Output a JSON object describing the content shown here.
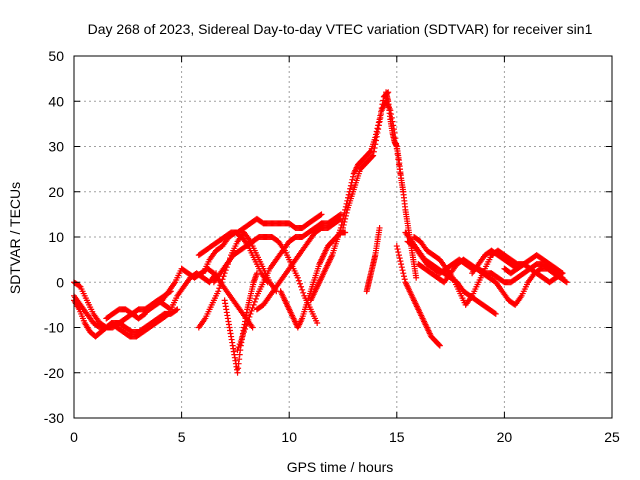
{
  "chart_data": {
    "type": "scatter",
    "title": "Day 268 of 2023, Sidereal Day-to-day VTEC variation (SDTVAR) for receiver sin1",
    "xlabel": "GPS time / hours",
    "ylabel": "SDTVAR / TECUs",
    "xlim": [
      0,
      25
    ],
    "ylim": [
      -30,
      50
    ],
    "xticks": [
      "0",
      "5",
      "10",
      "15",
      "20",
      "25"
    ],
    "yticks": [
      "-30",
      "-20",
      "-10",
      "0",
      "10",
      "20",
      "30",
      "40",
      "50"
    ],
    "grid": true,
    "marker": "+",
    "color": "#ff0000",
    "series": [
      {
        "name": "track-1",
        "x": [
          0.0,
          0.3,
          0.6,
          0.9,
          1.2,
          1.5,
          1.8,
          2.1,
          2.4,
          2.7,
          3.0,
          3.3,
          3.6,
          3.9,
          4.2,
          4.5,
          4.8
        ],
        "y": [
          -3,
          -5,
          -7,
          -9,
          -10,
          -10,
          -9,
          -9,
          -10,
          -11,
          -11,
          -10,
          -9,
          -8,
          -7,
          -7,
          -6
        ]
      },
      {
        "name": "track-2",
        "x": [
          0.0,
          0.25,
          0.5,
          0.75,
          1.0,
          1.25,
          1.5,
          1.75,
          2.0,
          2.3,
          2.6,
          2.9,
          3.2,
          3.5,
          3.8,
          4.1,
          4.4
        ],
        "y": [
          -4,
          -6,
          -9,
          -11,
          -12,
          -11,
          -10,
          -9,
          -10,
          -11,
          -12,
          -12,
          -11,
          -10,
          -9,
          -8,
          -7
        ]
      },
      {
        "name": "track-3",
        "x": [
          0.0,
          0.3,
          0.6,
          0.9,
          1.2,
          1.5,
          1.8,
          2.1,
          2.4,
          2.7,
          3.0,
          3.3,
          3.6,
          3.9,
          4.2,
          4.5
        ],
        "y": [
          0,
          -1,
          -4,
          -7,
          -9,
          -10,
          -10,
          -9,
          -8,
          -7,
          -6,
          -6,
          -5,
          -4,
          -3,
          -2
        ]
      },
      {
        "name": "track-4",
        "x": [
          1.5,
          1.8,
          2.1,
          2.4,
          2.7,
          3.0,
          3.3,
          3.6,
          3.9,
          4.2,
          4.5,
          4.8,
          5.1,
          5.4,
          5.7,
          6.0,
          6.3,
          6.6
        ],
        "y": [
          -8,
          -7,
          -6,
          -6,
          -7,
          -8,
          -7,
          -5,
          -4,
          -5,
          -6,
          -3,
          -1,
          1,
          2,
          1,
          0,
          2
        ]
      },
      {
        "name": "track-5",
        "x": [
          3.5,
          3.8,
          4.1,
          4.4,
          4.7,
          5.0,
          5.3,
          5.6,
          5.9,
          6.2,
          6.5,
          6.8,
          7.1,
          7.4,
          7.7,
          8.0,
          8.3
        ],
        "y": [
          -6,
          -5,
          -4,
          -2,
          0,
          3,
          2,
          1,
          2,
          3,
          2,
          0,
          -2,
          -4,
          -6,
          -8,
          -10
        ]
      },
      {
        "name": "track-6",
        "x": [
          5.8,
          6.1,
          6.4,
          6.7,
          7.0,
          7.3,
          7.6,
          7.9,
          8.2,
          8.5,
          8.8,
          9.1,
          9.4,
          9.7,
          10.0,
          10.3,
          10.6,
          10.9,
          11.2,
          11.5
        ],
        "y": [
          6,
          7,
          8,
          9,
          10,
          11,
          11,
          12,
          13,
          14,
          13,
          13,
          13,
          13,
          13,
          12,
          12,
          13,
          14,
          15
        ]
      },
      {
        "name": "track-7",
        "x": [
          5.8,
          6.1,
          6.4,
          6.7,
          7.0,
          7.3,
          7.6,
          7.9,
          8.2,
          8.5,
          8.8,
          9.1,
          9.4
        ],
        "y": [
          -10,
          -8,
          -5,
          -2,
          2,
          6,
          9,
          11,
          9,
          6,
          3,
          0,
          -2
        ]
      },
      {
        "name": "track-8",
        "x": [
          6.0,
          6.3,
          6.6,
          6.9,
          7.2,
          7.5,
          7.8,
          8.1,
          8.4,
          8.7,
          9.0
        ],
        "y": [
          2,
          5,
          7,
          8,
          10,
          11,
          10,
          8,
          5,
          2,
          0
        ]
      },
      {
        "name": "track-9",
        "x": [
          6.5,
          6.8,
          7.1,
          7.4,
          7.7,
          8.0,
          8.3,
          8.6,
          8.9,
          9.2,
          9.5,
          9.8,
          10.1,
          10.4,
          10.7,
          11.0,
          11.3
        ],
        "y": [
          0,
          2,
          4,
          6,
          7,
          8,
          9,
          10,
          10,
          10,
          9,
          7,
          4,
          1,
          -3,
          -6,
          -9
        ]
      },
      {
        "name": "track-10",
        "x": [
          7.0,
          7.15,
          7.3,
          7.45,
          7.6,
          7.75,
          7.9,
          8.05,
          8.2,
          8.35,
          8.5
        ],
        "y": [
          -4,
          -8,
          -12,
          -16,
          -20,
          -14,
          -10,
          -6,
          -3,
          0,
          2
        ]
      },
      {
        "name": "track-11",
        "x": [
          7.6,
          7.9,
          8.2,
          8.5,
          8.8,
          9.1,
          9.4,
          9.7,
          10.0,
          10.3,
          10.6,
          10.9,
          11.2,
          11.5,
          11.8,
          12.1,
          12.4
        ],
        "y": [
          -15,
          -11,
          -7,
          -3,
          0,
          3,
          5,
          7,
          9,
          10,
          10,
          11,
          12,
          13,
          13,
          14,
          15
        ]
      },
      {
        "name": "track-12",
        "x": [
          8.5,
          8.8,
          9.1,
          9.4,
          9.7,
          10.0,
          10.3,
          10.6,
          10.9,
          11.2,
          11.5,
          11.8,
          12.1,
          12.4
        ],
        "y": [
          -6,
          -5,
          -3,
          -1,
          1,
          3,
          5,
          7,
          9,
          11,
          12,
          12,
          13,
          14
        ]
      },
      {
        "name": "track-13",
        "x": [
          9.6,
          9.8,
          10.0,
          10.2,
          10.4,
          10.6,
          10.8,
          11.0,
          11.2,
          11.4,
          11.6,
          11.8,
          12.0,
          12.2,
          12.4,
          12.6
        ],
        "y": [
          -2,
          -4,
          -6,
          -8,
          -10,
          -8,
          -5,
          -2,
          1,
          4,
          6,
          8,
          9,
          10,
          11,
          11
        ]
      },
      {
        "name": "track-14",
        "x": [
          11.0,
          11.2,
          11.4,
          11.6,
          11.8,
          12.0,
          12.2,
          12.4,
          12.6,
          12.8,
          13.0,
          13.2,
          13.4,
          13.6,
          13.8,
          14.0,
          14.2,
          14.4,
          14.6
        ],
        "y": [
          -4,
          -2,
          0,
          2,
          4,
          6,
          9,
          12,
          16,
          20,
          24,
          26,
          27,
          28,
          29,
          32,
          36,
          41,
          42
        ]
      },
      {
        "name": "track-15",
        "x": [
          12.5,
          12.7,
          12.9,
          13.1,
          13.3,
          13.5,
          13.7,
          13.9,
          14.1,
          14.3,
          14.5,
          14.7,
          14.9,
          15.1,
          15.3
        ],
        "y": [
          12,
          16,
          19,
          22,
          25,
          26,
          27,
          28,
          33,
          38,
          40,
          38,
          33,
          26,
          20
        ]
      },
      {
        "name": "track-16",
        "x": [
          13.6,
          13.7,
          13.8,
          13.9,
          14.0,
          14.1,
          14.2
        ],
        "y": [
          -2,
          0,
          2,
          4,
          6,
          9,
          12
        ]
      },
      {
        "name": "track-17",
        "x": [
          14.5,
          14.6,
          14.7,
          14.8,
          14.9,
          15.0,
          15.1,
          15.2,
          15.3,
          15.4,
          15.5,
          15.6,
          15.7,
          15.8,
          15.9
        ],
        "y": [
          42,
          40,
          36,
          33,
          31,
          30,
          27,
          23,
          20,
          16,
          13,
          10,
          7,
          4,
          1
        ]
      },
      {
        "name": "track-18",
        "x": [
          15.0,
          15.2,
          15.4,
          15.6,
          15.8,
          16.0,
          16.2,
          16.4,
          16.6,
          16.8,
          17.0
        ],
        "y": [
          8,
          4,
          0,
          -2,
          -4,
          -6,
          -8,
          -10,
          -12,
          -13,
          -14
        ]
      },
      {
        "name": "track-19",
        "x": [
          15.4,
          15.7,
          16.0,
          16.3,
          16.6,
          16.9,
          17.2,
          17.5,
          17.8,
          18.1,
          18.4,
          18.7,
          19.0,
          19.3,
          19.6
        ],
        "y": [
          11,
          9,
          7,
          5,
          4,
          3,
          2,
          1,
          0,
          -2,
          -3,
          -4,
          -5,
          -6,
          -7
        ]
      },
      {
        "name": "track-20",
        "x": [
          15.5,
          15.8,
          16.1,
          16.4,
          16.7,
          17.0,
          17.3,
          17.6,
          17.9,
          18.2,
          18.5,
          18.8,
          19.1,
          19.4,
          19.7,
          20.0,
          20.3,
          20.6,
          20.9,
          21.2,
          21.5,
          21.8,
          22.1,
          22.4,
          22.7
        ],
        "y": [
          9,
          8,
          6,
          4,
          3,
          2,
          3,
          4,
          5,
          4,
          3,
          3,
          2,
          2,
          1,
          0,
          0,
          1,
          2,
          3,
          4,
          4,
          3,
          2,
          1
        ]
      },
      {
        "name": "track-21",
        "x": [
          15.8,
          16.1,
          16.4,
          16.7,
          17.0,
          17.3,
          17.6,
          17.9,
          18.2,
          18.5,
          18.8,
          19.1,
          19.4,
          19.7,
          20.0,
          20.3,
          20.6,
          20.9
        ],
        "y": [
          10,
          9,
          7,
          6,
          5,
          3,
          1,
          -2,
          -5,
          -3,
          0,
          3,
          6,
          7,
          6,
          5,
          4,
          4
        ]
      },
      {
        "name": "track-22",
        "x": [
          16.0,
          16.3,
          16.6,
          16.9,
          17.2,
          17.5,
          17.8,
          18.1,
          18.4,
          18.7,
          19.0,
          19.3,
          19.6,
          19.9,
          20.2,
          20.5,
          20.8,
          21.1,
          21.4,
          21.7,
          22.0,
          22.3,
          22.6,
          22.9
        ],
        "y": [
          4,
          3,
          2,
          1,
          0,
          2,
          4,
          5,
          4,
          3,
          2,
          1,
          0,
          -2,
          -4,
          -5,
          -3,
          0,
          2,
          3,
          3,
          2,
          1,
          0
        ]
      },
      {
        "name": "track-23",
        "x": [
          18.5,
          18.8,
          19.1,
          19.4,
          19.7,
          20.0,
          20.3,
          20.6,
          20.9,
          21.2,
          21.5,
          21.8,
          22.1,
          22.4,
          22.7
        ],
        "y": [
          2,
          4,
          6,
          7,
          6,
          5,
          4,
          3,
          4,
          5,
          6,
          5,
          4,
          3,
          2
        ]
      },
      {
        "name": "track-24",
        "x": [
          20.0,
          20.3,
          20.6,
          20.9,
          21.2,
          21.5,
          21.8,
          22.1,
          22.4,
          22.7
        ],
        "y": [
          3,
          2,
          3,
          4,
          3,
          2,
          1,
          0,
          1,
          2
        ]
      }
    ]
  }
}
